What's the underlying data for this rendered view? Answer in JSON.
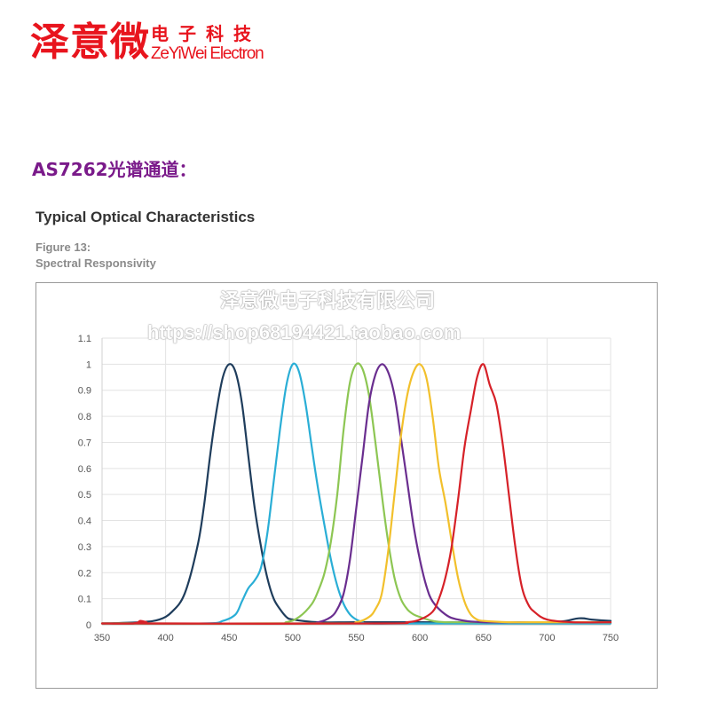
{
  "logo": {
    "name_cn": "泽意微",
    "sub_cn": "电子科技",
    "name_en": "ZeYiWei Electron",
    "color": "#e8141d"
  },
  "section": {
    "title": "AS7262光谱通道：",
    "color": "#7a1a8a"
  },
  "figure": {
    "heading": "Typical Optical Characteristics",
    "label": "Figure 13:",
    "caption": "Spectral Responsivity",
    "heading_color": "#333333",
    "caption_color": "#8a8a8a"
  },
  "watermark": {
    "company": "泽意微电子科技有限公司",
    "url": "https://shop68194421.taobao.com"
  },
  "chart_data": {
    "type": "line",
    "title": "",
    "xlabel": "",
    "ylabel": "",
    "xlim": [
      350,
      750
    ],
    "ylim": [
      0,
      1.1
    ],
    "x_ticks": [
      "350",
      "400",
      "450",
      "500",
      "550",
      "600",
      "650",
      "700",
      "750"
    ],
    "y_ticks": [
      "0",
      "0.1",
      "0.2",
      "0.3",
      "0.4",
      "0.5",
      "0.6",
      "0.7",
      "0.8",
      "0.9",
      "1",
      "1.1"
    ],
    "grid": true,
    "legend": "none",
    "series": [
      {
        "color": "#1f3d5c",
        "x": [
          350,
          380,
          395,
          405,
          415,
          425,
          430,
          435,
          440,
          445,
          450,
          455,
          460,
          465,
          470,
          475,
          480,
          485,
          490,
          495,
          500,
          520,
          550,
          600,
          700,
          725,
          735,
          750
        ],
        "y": [
          0.005,
          0.01,
          0.02,
          0.05,
          0.12,
          0.3,
          0.45,
          0.65,
          0.82,
          0.95,
          1.0,
          0.97,
          0.85,
          0.65,
          0.45,
          0.3,
          0.18,
          0.1,
          0.06,
          0.03,
          0.02,
          0.01,
          0.01,
          0.01,
          0.01,
          0.025,
          0.02,
          0.015
        ]
      },
      {
        "color": "#2aaed6",
        "x": [
          350,
          430,
          445,
          455,
          460,
          465,
          470,
          475,
          480,
          485,
          490,
          495,
          500,
          505,
          510,
          515,
          520,
          525,
          530,
          535,
          540,
          545,
          550,
          555,
          560,
          600,
          700,
          750
        ],
        "y": [
          0.005,
          0.005,
          0.015,
          0.04,
          0.09,
          0.14,
          0.17,
          0.22,
          0.35,
          0.55,
          0.75,
          0.92,
          1.0,
          0.97,
          0.85,
          0.68,
          0.52,
          0.38,
          0.25,
          0.15,
          0.08,
          0.04,
          0.02,
          0.01,
          0.005,
          0.005,
          0.005,
          0.005
        ]
      },
      {
        "color": "#8dc653",
        "x": [
          350,
          480,
          495,
          505,
          515,
          520,
          525,
          530,
          535,
          540,
          545,
          550,
          555,
          560,
          565,
          570,
          575,
          580,
          585,
          590,
          595,
          600,
          610,
          620,
          650,
          700,
          750
        ],
        "y": [
          0.005,
          0.005,
          0.01,
          0.03,
          0.08,
          0.13,
          0.2,
          0.32,
          0.5,
          0.75,
          0.93,
          1.0,
          0.98,
          0.88,
          0.7,
          0.5,
          0.32,
          0.18,
          0.1,
          0.06,
          0.04,
          0.03,
          0.015,
          0.01,
          0.01,
          0.01,
          0.01
        ]
      },
      {
        "color": "#6a2e8f",
        "x": [
          350,
          500,
          520,
          530,
          535,
          540,
          545,
          550,
          555,
          560,
          565,
          570,
          575,
          580,
          585,
          590,
          595,
          600,
          605,
          610,
          620,
          630,
          650,
          700,
          750
        ],
        "y": [
          0.005,
          0.005,
          0.01,
          0.03,
          0.06,
          0.12,
          0.25,
          0.45,
          0.65,
          0.85,
          0.96,
          1.0,
          0.97,
          0.88,
          0.72,
          0.55,
          0.38,
          0.25,
          0.15,
          0.09,
          0.04,
          0.02,
          0.01,
          0.01,
          0.01
        ]
      },
      {
        "color": "#f2c02c",
        "x": [
          350,
          530,
          550,
          560,
          565,
          570,
          575,
          580,
          585,
          590,
          595,
          600,
          605,
          610,
          615,
          620,
          625,
          630,
          635,
          640,
          645,
          650,
          670,
          700,
          750
        ],
        "y": [
          0.005,
          0.005,
          0.01,
          0.03,
          0.06,
          0.12,
          0.28,
          0.5,
          0.72,
          0.88,
          0.97,
          1.0,
          0.95,
          0.8,
          0.6,
          0.47,
          0.32,
          0.18,
          0.09,
          0.04,
          0.02,
          0.015,
          0.01,
          0.01,
          0.01
        ]
      },
      {
        "color": "#d62128",
        "x": [
          350,
          375,
          380,
          385,
          390,
          570,
          590,
          600,
          610,
          615,
          620,
          625,
          630,
          635,
          640,
          645,
          650,
          655,
          660,
          665,
          670,
          675,
          680,
          685,
          690,
          700,
          720,
          750
        ],
        "y": [
          0.005,
          0.005,
          0.015,
          0.01,
          0.005,
          0.005,
          0.01,
          0.02,
          0.05,
          0.1,
          0.18,
          0.3,
          0.48,
          0.68,
          0.82,
          0.95,
          1.0,
          0.92,
          0.85,
          0.7,
          0.5,
          0.3,
          0.15,
          0.08,
          0.05,
          0.02,
          0.01,
          0.01
        ]
      }
    ]
  }
}
